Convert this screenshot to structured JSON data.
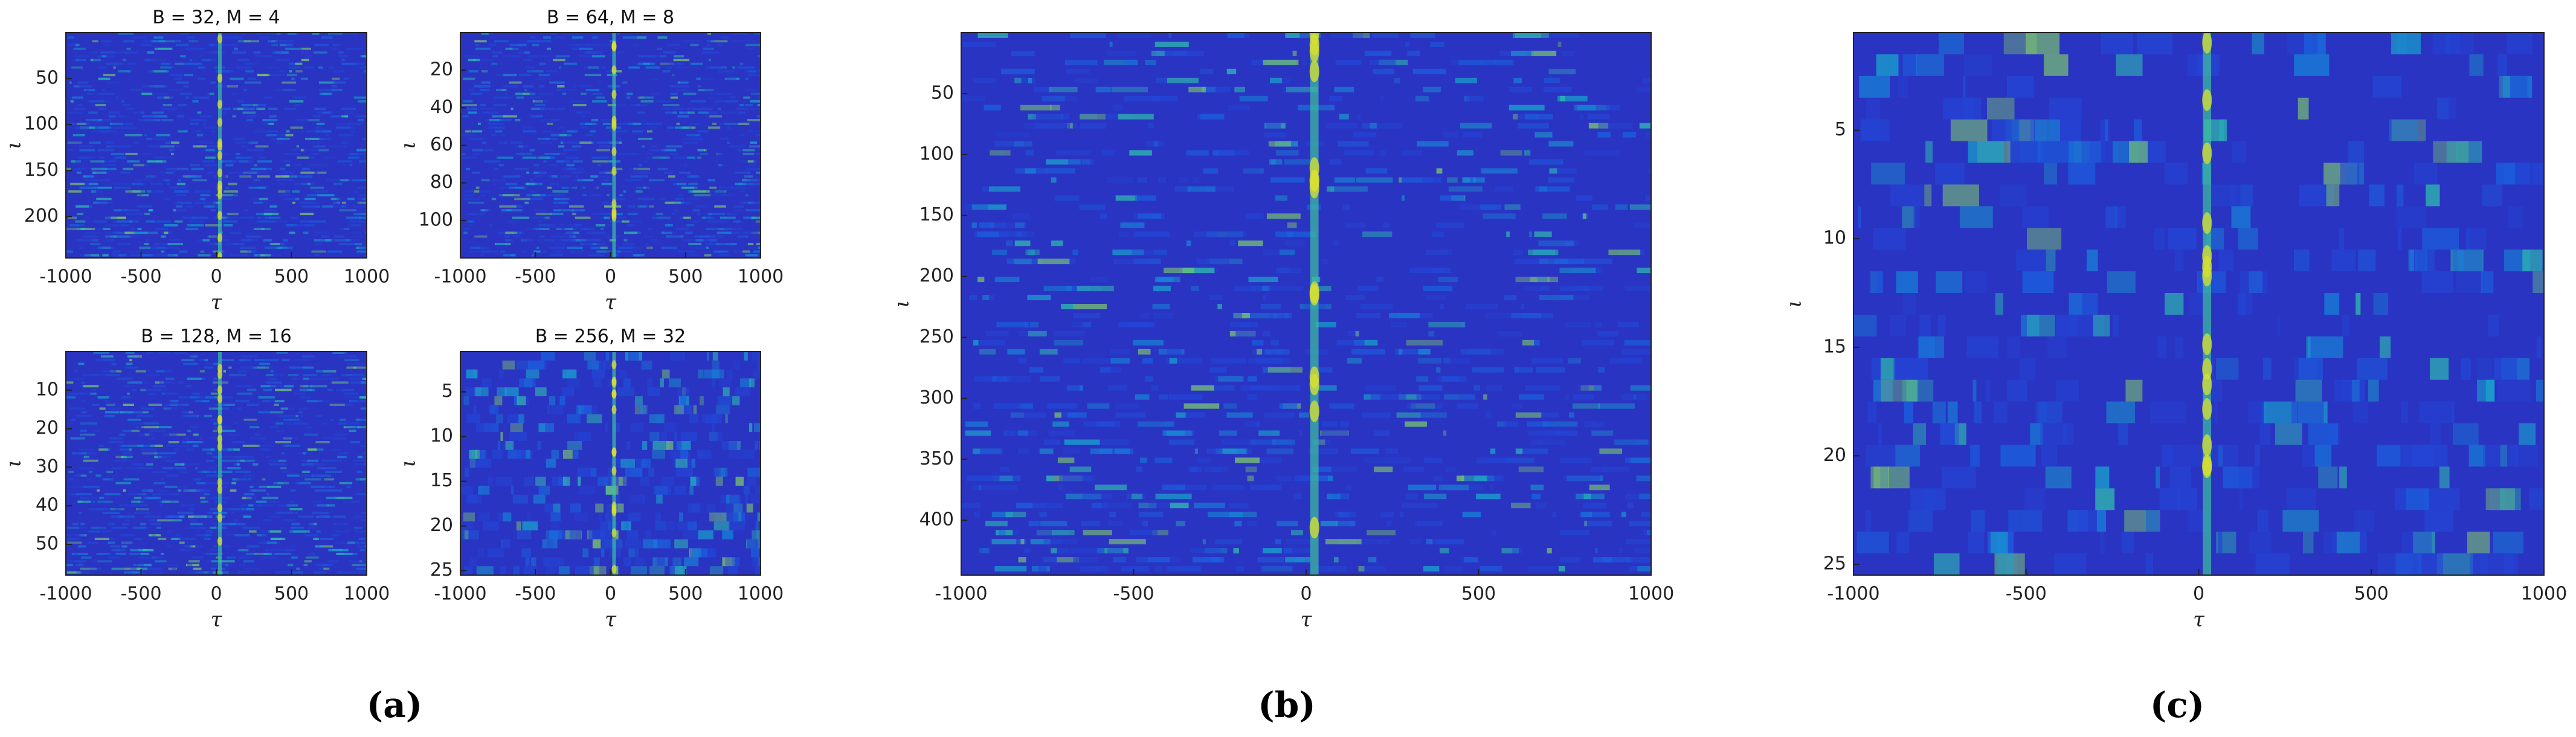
{
  "chart_data": [
    {
      "type": "heatmap",
      "title": "B = 32, M = 4",
      "xlabel": "τ",
      "ylabel": "ι",
      "xlim": [
        -1000,
        1000
      ],
      "xticks": [
        -1000,
        -500,
        0,
        500,
        1000
      ],
      "ylim": [
        0,
        245
      ],
      "yticks": [
        50,
        100,
        150,
        200
      ],
      "y_inverted": true
    },
    {
      "type": "heatmap",
      "title": "B = 64, M = 8",
      "xlabel": "τ",
      "ylabel": "ι",
      "xlim": [
        -1000,
        1000
      ],
      "xticks": [
        -1000,
        -500,
        0,
        500,
        1000
      ],
      "ylim": [
        0,
        120
      ],
      "yticks": [
        20,
        40,
        60,
        80,
        100
      ],
      "y_inverted": true
    },
    {
      "type": "heatmap",
      "title": "B = 128, M = 16",
      "xlabel": "τ",
      "ylabel": "ι",
      "xlim": [
        -1000,
        1000
      ],
      "xticks": [
        -1000,
        -500,
        0,
        500,
        1000
      ],
      "ylim": [
        0,
        58
      ],
      "yticks": [
        10,
        20,
        30,
        40,
        50
      ],
      "y_inverted": true
    },
    {
      "type": "heatmap",
      "title": "B = 256, M = 32",
      "xlabel": "τ",
      "ylabel": "ι",
      "xlim": [
        -1000,
        1000
      ],
      "xticks": [
        -1000,
        -500,
        0,
        500,
        1000
      ],
      "ylim": [
        0.5,
        25.5
      ],
      "yticks": [
        5,
        10,
        15,
        20,
        25
      ],
      "y_inverted": true
    },
    {
      "type": "heatmap",
      "xlabel": "τ",
      "ylabel": "ι",
      "xlim": [
        -1000,
        1000
      ],
      "xticks": [
        -1000,
        -500,
        0,
        500,
        1000
      ],
      "ylim": [
        0,
        445
      ],
      "yticks": [
        50,
        100,
        150,
        200,
        250,
        300,
        350,
        400
      ],
      "y_inverted": true
    },
    {
      "type": "heatmap",
      "xlabel": "τ",
      "ylabel": "ι",
      "xlim": [
        -1000,
        1000
      ],
      "xticks": [
        -1000,
        -500,
        0,
        500,
        1000
      ],
      "ylim": [
        0.5,
        25.5
      ],
      "yticks": [
        5,
        10,
        15,
        20,
        25
      ],
      "y_inverted": true
    }
  ],
  "panel_labels": [
    "(a)",
    "(b)",
    "(c)"
  ]
}
